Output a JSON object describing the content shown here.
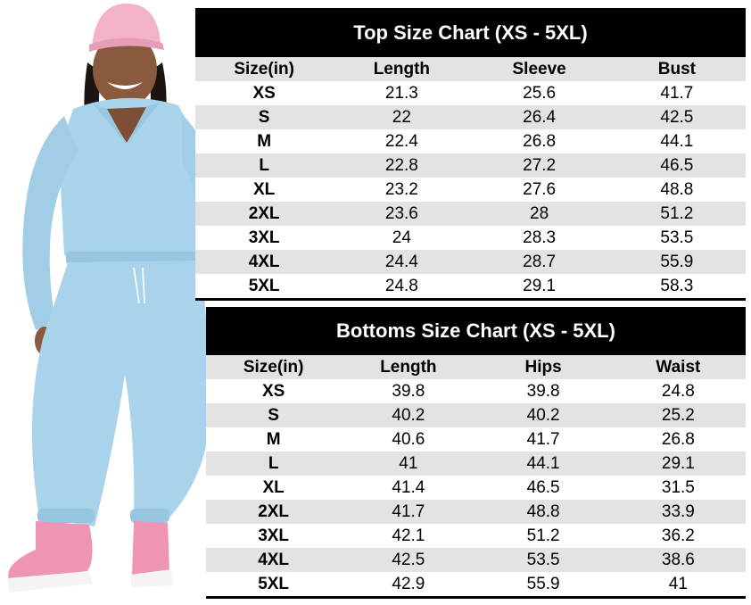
{
  "top_chart": {
    "title": "Top Size Chart (XS - 5XL)",
    "headers": [
      "Size(in)",
      "Length",
      "Sleeve",
      "Bust"
    ],
    "rows": [
      [
        "XS",
        "21.3",
        "25.6",
        "41.7"
      ],
      [
        "S",
        "22",
        "26.4",
        "42.5"
      ],
      [
        "M",
        "22.4",
        "26.8",
        "44.1"
      ],
      [
        "L",
        "22.8",
        "27.2",
        "46.5"
      ],
      [
        "XL",
        "23.2",
        "27.6",
        "48.8"
      ],
      [
        "2XL",
        "23.6",
        "28",
        "51.2"
      ],
      [
        "3XL",
        "24",
        "28.3",
        "53.5"
      ],
      [
        "4XL",
        "24.4",
        "28.7",
        "55.9"
      ],
      [
        "5XL",
        "24.8",
        "29.1",
        "58.3"
      ]
    ]
  },
  "bottoms_chart": {
    "title": "Bottoms Size Chart (XS - 5XL)",
    "headers": [
      "Size(in)",
      "Length",
      "Hips",
      "Waist"
    ],
    "rows": [
      [
        "XS",
        "39.8",
        "39.8",
        "24.8"
      ],
      [
        "S",
        "40.2",
        "40.2",
        "25.2"
      ],
      [
        "M",
        "40.6",
        "41.7",
        "26.8"
      ],
      [
        "L",
        "41",
        "44.1",
        "29.1"
      ],
      [
        "XL",
        "41.4",
        "46.5",
        "31.5"
      ],
      [
        "2XL",
        "41.7",
        "48.8",
        "33.9"
      ],
      [
        "3XL",
        "42.1",
        "51.2",
        "36.2"
      ],
      [
        "4XL",
        "42.5",
        "53.5",
        "38.6"
      ],
      [
        "5XL",
        "42.9",
        "55.9",
        "41"
      ]
    ]
  },
  "colors": {
    "header_bg": "#000000",
    "shade_row": "#e3e3e3",
    "outfit": "#a9d3ea",
    "cap": "#f2b3c7",
    "sneakers": "#ee94b4"
  },
  "icons": [
    "model-photo"
  ]
}
